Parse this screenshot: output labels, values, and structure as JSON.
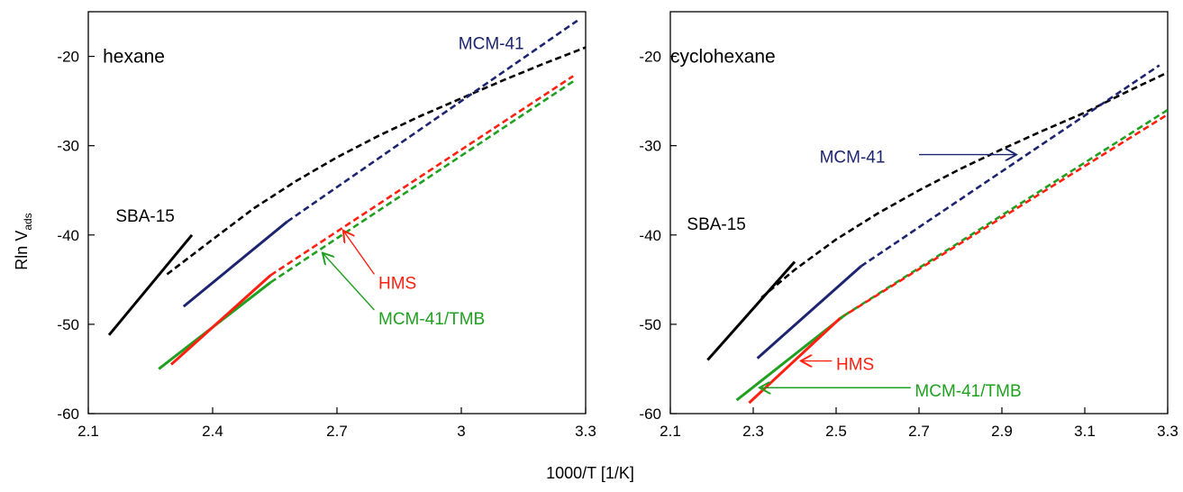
{
  "figure": {
    "ylabel_main": "Rln V",
    "ylabel_sub": "ads",
    "xlabel": "1000/T [1/K]"
  },
  "chart_data": [
    {
      "type": "line",
      "title": "hexane",
      "xlabel": "1000/T [1/K]",
      "ylabel": "Rln Vads",
      "xlim": [
        2.1,
        3.3
      ],
      "ylim": [
        -60,
        -15
      ],
      "xticks": [
        2.1,
        2.4,
        2.7,
        3,
        3.3
      ],
      "xtick_labels": [
        "2.1",
        "2.4",
        "2.7",
        "3",
        "3.3"
      ],
      "yticks": [
        -60,
        -50,
        -40,
        -30,
        -20
      ],
      "ytick_labels": [
        "-60",
        "-50",
        "-40",
        "-30",
        "-20"
      ],
      "grid": false,
      "series": [
        {
          "id": "sba15-solid",
          "color": "#000000",
          "style": "solid",
          "x": [
            2.15,
            2.35
          ],
          "y": [
            -51.2,
            -40.0
          ]
        },
        {
          "id": "sba15-dashed",
          "color": "#000000",
          "style": "dashed",
          "x": [
            2.29,
            2.4,
            2.5,
            2.6,
            2.7,
            2.8,
            2.9,
            3.0,
            3.1,
            3.2,
            3.3
          ],
          "y": [
            -44.4,
            -40.5,
            -37.0,
            -34.0,
            -31.3,
            -28.9,
            -26.7,
            -24.7,
            -22.7,
            -20.8,
            -19.0
          ]
        },
        {
          "id": "mcm41-solid",
          "color": "#1c2470",
          "style": "solid",
          "x": [
            2.33,
            2.58
          ],
          "y": [
            -48.0,
            -38.5
          ]
        },
        {
          "id": "mcm41-dashed",
          "color": "#1c2470",
          "style": "dashed",
          "x": [
            2.58,
            3.28
          ],
          "y": [
            -38.5,
            -16.0
          ]
        },
        {
          "id": "hms-solid",
          "color": "#ff2010",
          "style": "solid",
          "x": [
            2.3,
            2.54
          ],
          "y": [
            -54.5,
            -44.5
          ]
        },
        {
          "id": "hms-dashed",
          "color": "#ff2010",
          "style": "dashed",
          "x": [
            2.54,
            3.27
          ],
          "y": [
            -44.5,
            -22.2
          ]
        },
        {
          "id": "mcm41tmb-solid",
          "color": "#20a020",
          "style": "solid",
          "x": [
            2.27,
            2.54
          ],
          "y": [
            -55.0,
            -45.3
          ]
        },
        {
          "id": "mcm41tmb-dashed",
          "color": "#20a020",
          "style": "dashed",
          "x": [
            2.54,
            3.27
          ],
          "y": [
            -45.3,
            -22.8
          ]
        }
      ],
      "annotations": [
        {
          "id": "label-title",
          "text": "hexane",
          "color": "#000000",
          "x": 2.135,
          "y": -20.0
        },
        {
          "id": "label-sba15",
          "text": "SBA-15",
          "color": "#000000",
          "x": 2.166,
          "y": -37.8
        },
        {
          "id": "label-mcm41",
          "text": "MCM-41",
          "color": "#1c2470",
          "x": 2.993,
          "y": -18.5
        },
        {
          "id": "label-hms",
          "text": "HMS",
          "color": "#ff2010",
          "x": 2.8,
          "y": -45.3
        },
        {
          "id": "label-mcm41tmb",
          "text": "MCM-41/TMB",
          "color": "#20a020",
          "x": 2.8,
          "y": -49.3
        }
      ],
      "arrows": [
        {
          "id": "arrow-hms",
          "color": "#ff2010",
          "from": [
            2.79,
            -44.4
          ],
          "to": [
            2.715,
            -39.5
          ]
        },
        {
          "id": "arrow-mcm41tmb",
          "color": "#20a020",
          "from": [
            2.79,
            -48.4
          ],
          "to": [
            2.665,
            -42.0
          ]
        }
      ]
    },
    {
      "type": "line",
      "title": "cyclohexane",
      "xlabel": "1000/T [1/K]",
      "ylabel": "Rln Vads",
      "xlim": [
        2.1,
        3.3
      ],
      "ylim": [
        -60,
        -15
      ],
      "xticks": [
        2.1,
        2.3,
        2.5,
        2.7,
        2.9,
        3.1,
        3.3
      ],
      "xtick_labels": [
        "2.1",
        "2.3",
        "2.5",
        "2.7",
        "2.9",
        "3.1",
        "3.3"
      ],
      "yticks": [
        -60,
        -50,
        -40,
        -30,
        -20
      ],
      "ytick_labels": [
        "-60",
        "-50",
        "-40",
        "-30",
        "-20"
      ],
      "grid": false,
      "series": [
        {
          "id": "sba15-solid",
          "color": "#000000",
          "style": "solid",
          "x": [
            2.19,
            2.4
          ],
          "y": [
            -54.0,
            -43.0
          ]
        },
        {
          "id": "sba15-dashed",
          "color": "#000000",
          "style": "dashed",
          "x": [
            2.32,
            2.4,
            2.5,
            2.6,
            2.7,
            2.8,
            2.9,
            3.0,
            3.1,
            3.2,
            3.3
          ],
          "y": [
            -47.0,
            -43.9,
            -40.5,
            -37.6,
            -35.0,
            -32.6,
            -30.4,
            -28.3,
            -26.3,
            -24.0,
            -21.8
          ]
        },
        {
          "id": "mcm41-solid",
          "color": "#1c2470",
          "style": "solid",
          "x": [
            2.31,
            2.56
          ],
          "y": [
            -53.8,
            -43.5
          ]
        },
        {
          "id": "mcm41-dashed",
          "color": "#1c2470",
          "style": "dashed",
          "x": [
            2.56,
            3.28
          ],
          "y": [
            -43.5,
            -21.0
          ]
        },
        {
          "id": "hms-solid",
          "color": "#ff2010",
          "style": "solid",
          "x": [
            2.29,
            2.51
          ],
          "y": [
            -58.8,
            -49.3
          ]
        },
        {
          "id": "hms-dashed",
          "color": "#ff2010",
          "style": "dashed",
          "x": [
            2.51,
            3.3
          ],
          "y": [
            -49.3,
            -26.5
          ]
        },
        {
          "id": "mcm41tmb-solid",
          "color": "#20a020",
          "style": "solid",
          "x": [
            2.26,
            2.52
          ],
          "y": [
            -58.5,
            -49.0
          ]
        },
        {
          "id": "mcm41tmb-dashed",
          "color": "#20a020",
          "style": "dashed",
          "x": [
            2.52,
            3.3
          ],
          "y": [
            -49.0,
            -26.0
          ]
        }
      ],
      "annotations": [
        {
          "id": "label-title",
          "text": "cyclohexane",
          "color": "#000000",
          "x": 2.1,
          "y": -20.0
        },
        {
          "id": "label-sba15",
          "text": "SBA-15",
          "color": "#000000",
          "x": 2.14,
          "y": -38.7
        },
        {
          "id": "label-mcm41",
          "text": "MCM-41",
          "color": "#1c2470",
          "x": 2.46,
          "y": -31.2
        },
        {
          "id": "label-hms",
          "text": "HMS",
          "color": "#ff2010",
          "x": 2.5,
          "y": -54.4
        },
        {
          "id": "label-mcm41tmb",
          "text": "MCM-41/TMB",
          "color": "#20a020",
          "x": 2.69,
          "y": -57.4
        }
      ],
      "arrows": [
        {
          "id": "arrow-mcm41",
          "color": "#1c2470",
          "from": [
            2.7,
            -31.0
          ],
          "to": [
            2.935,
            -31.0
          ]
        },
        {
          "id": "arrow-hms",
          "color": "#ff2010",
          "from": [
            2.49,
            -54.1
          ],
          "to": [
            2.415,
            -54.1
          ]
        },
        {
          "id": "arrow-mcm41tmb",
          "color": "#20a020",
          "from": [
            2.68,
            -57.1
          ],
          "to": [
            2.315,
            -57.1
          ]
        }
      ]
    }
  ]
}
